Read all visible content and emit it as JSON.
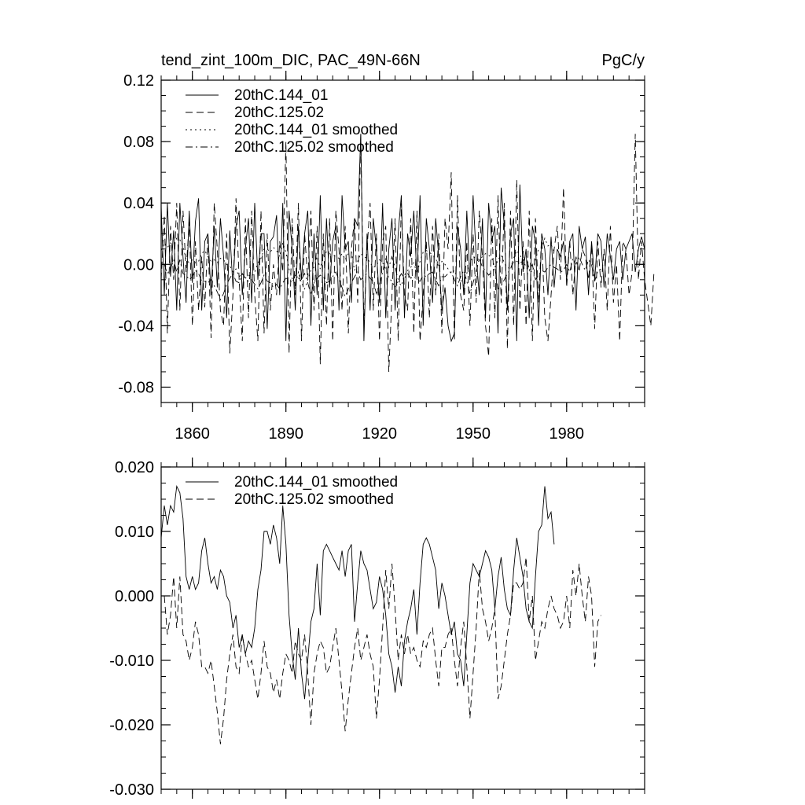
{
  "chart_data": [
    {
      "type": "line",
      "title": "tend_zint_100m_DIC, PAC_49N-66N",
      "units": "PgC/y",
      "xlim": [
        1850,
        2005
      ],
      "ylim": [
        -0.09,
        0.12
      ],
      "yticks": [
        -0.08,
        -0.04,
        0.0,
        0.04,
        0.08,
        0.12
      ],
      "ytick_labels": [
        "-0.08",
        "-0.04",
        "0.00",
        "0.04",
        "0.08",
        "0.12"
      ],
      "xticks": [
        1860,
        1890,
        1920,
        1950,
        1980
      ],
      "xtick_labels": [
        "1860",
        "1890",
        "1920",
        "1950",
        "1980"
      ],
      "legend": [
        {
          "label": "20thC.144_01",
          "dash": "solid"
        },
        {
          "label": "20thC.125.02",
          "dash": "dash"
        },
        {
          "label": "20thC.144_01 smoothed",
          "dash": "dot"
        },
        {
          "label": "20thC.125.02 smoothed",
          "dash": "dashdot"
        }
      ],
      "series": [
        {
          "name": "20thC.144_01",
          "x_start": 1850,
          "x_step": 1,
          "values": [
            0.038,
            -0.02,
            0.04,
            -0.008,
            0.022,
            -0.03,
            0.04,
            0.005,
            -0.025,
            0.035,
            -0.012,
            0.028,
            0.043,
            -0.03,
            0.015,
            0.02,
            -0.02,
            0.025,
            -0.015,
            0.03,
            0.005,
            -0.035,
            0.022,
            -0.015,
            0.025,
            0.035,
            -0.02,
            0.01,
            0.03,
            -0.025,
            0.04,
            -0.01,
            0.02,
            0.02,
            -0.042,
            0.015,
            0.018,
            0.032,
            -0.02,
            0.04,
            -0.05,
            0.035,
            0.01,
            -0.03,
            0.025,
            -0.01,
            0.02,
            0.035,
            -0.04,
            0.02,
            -0.02,
            0.045,
            -0.03,
            0.03,
            -0.015,
            0.015,
            0.025,
            -0.03,
            0.045,
            0.01,
            0.015,
            -0.025,
            0.03,
            0.025,
            0.085,
            -0.05,
            0.02,
            -0.03,
            0.03,
            0.01,
            -0.025,
            0.04,
            -0.035,
            0.01,
            0.03,
            -0.03,
            0.02,
            0.045,
            -0.035,
            0.02,
            0.005,
            0.035,
            -0.01,
            0.045,
            -0.04,
            0.03,
            0.01,
            -0.025,
            0.03,
            0.005,
            -0.03,
            -0.015,
            -0.04,
            -0.05,
            -0.045,
            0.025,
            0.01,
            -0.02,
            0.035,
            -0.01,
            0.045,
            0.005,
            -0.02,
            0.03,
            -0.035,
            0.04,
            0.015,
            0.025,
            -0.045,
            0.05,
            0.025,
            -0.03,
            0.02,
            0.03,
            -0.05,
            0.052,
            -0.005,
            0.01,
            -0.035,
            0.025,
            0.015,
            -0.04,
            0.02,
            0.01,
            -0.02,
            0.018,
            -0.015,
            0.01,
            0.005,
            0.015,
            -0.01,
            0.015,
            0.02,
            -0.03,
            0.025,
            0.01,
            0.018,
            -0.02,
            0.015,
            -0.01,
            0.02,
            0.015,
            -0.015,
            0.02,
            0.005,
            -0.01,
            0.01,
            0.015,
            -0.01,
            0.01,
            0.015,
            0.02,
            -0.005,
            0.01,
            0.018,
            0.01
          ]
        },
        {
          "name": "20thC.125.02",
          "x_start": 1850,
          "x_step": 1,
          "values": [
            -0.01,
            0.032,
            -0.045,
            0.025,
            -0.01,
            0.04,
            -0.03,
            0.035,
            -0.005,
            0.028,
            -0.04,
            0.015,
            -0.03,
            0.005,
            -0.028,
            0.02,
            -0.048,
            0.04,
            0.01,
            -0.03,
            -0.04,
            0.02,
            -0.058,
            -0.02,
            0.043,
            -0.01,
            -0.05,
            0.03,
            -0.035,
            0.035,
            -0.02,
            -0.05,
            0.035,
            -0.045,
            0.02,
            -0.03,
            0.0,
            -0.02,
            0.015,
            -0.005,
            0.08,
            -0.058,
            0.03,
            -0.02,
            0.04,
            -0.05,
            0.02,
            -0.01,
            0.035,
            -0.03,
            0.025,
            -0.065,
            0.02,
            -0.04,
            0.03,
            -0.05,
            0.035,
            0.01,
            -0.03,
            0.025,
            -0.045,
            0.01,
            0.03,
            -0.025,
            0.085,
            -0.04,
            0.01,
            0.04,
            -0.03,
            0.02,
            -0.05,
            0.015,
            0.025,
            -0.07,
            -0.02,
            0.03,
            -0.05,
            0.04,
            -0.02,
            -0.03,
            0.03,
            -0.045,
            0.035,
            -0.05,
            -0.02,
            0.015,
            -0.035,
            0.025,
            -0.02,
            0.02,
            -0.045,
            0.03,
            0.01,
            0.06,
            -0.05,
            0.045,
            -0.02,
            -0.03,
            0.015,
            -0.04,
            0.02,
            -0.025,
            0.035,
            0.005,
            -0.04,
            -0.06,
            0.03,
            -0.035,
            0.045,
            -0.025,
            0.04,
            -0.055,
            0.035,
            -0.04,
            0.055,
            -0.03,
            0.015,
            -0.04,
            0.035,
            -0.05,
            0.03,
            -0.025,
            0.02,
            -0.035,
            -0.05,
            -0.02,
            0.01,
            0.025,
            -0.01,
            0.05,
            -0.015,
            0.015,
            -0.02,
            0.005,
            -0.005,
            0.01,
            0.005,
            -0.01,
            0.012,
            -0.042,
            0.015,
            -0.015,
            0.01,
            -0.03,
            0.025,
            -0.025,
            0.0,
            -0.05,
            0.015,
            0.01,
            -0.02,
            -0.005,
            0.085,
            -0.01,
            0.015,
            -0.01,
            -0.025,
            -0.04,
            -0.005
          ]
        },
        {
          "name": "20thC.144_01 smoothed",
          "x_start": 1850,
          "x_step": 1,
          "values": [
            0.009,
            0.014,
            0.011,
            0.014,
            0.013,
            0.017,
            0.016,
            0.012,
            0.003,
            0.001,
            0.003,
            0.001,
            0.002,
            0.007,
            0.009,
            0.005,
            0.002,
            0.003,
            0.001,
            0.004,
            0.003,
            0.0,
            -0.001,
            -0.005,
            -0.003,
            -0.008,
            -0.006,
            -0.009,
            -0.007,
            -0.008,
            -0.005,
            0.001,
            0.004,
            0.01,
            0.01,
            0.008,
            0.011,
            0.009,
            0.005,
            0.014,
            0.008,
            -0.003,
            -0.009,
            -0.013,
            -0.005,
            -0.012,
            -0.016,
            -0.01,
            -0.004,
            -0.002,
            0.005,
            -0.003,
            0.007,
            0.008,
            0.007,
            0.006,
            0.005,
            0.004,
            0.007,
            0.003,
            0.007,
            0.008,
            -0.004,
            0.002,
            0.007,
            0.005,
            0.004,
            0.001,
            -0.002,
            -0.001,
            0.003,
            0.001,
            -0.003,
            -0.009,
            -0.011,
            -0.015,
            -0.011,
            -0.014,
            -0.007,
            -0.004,
            -0.002,
            0.001,
            -0.006,
            0.002,
            0.008,
            0.009,
            0.008,
            0.006,
            0.004,
            -0.002,
            0.002,
            0.0,
            -0.003,
            -0.006,
            -0.004,
            -0.009,
            -0.01,
            -0.014,
            -0.006,
            0.002,
            0.005,
            0.004,
            0.003,
            0.005,
            0.007,
            0.006,
            0.004,
            -0.002,
            0.003,
            0.006,
            0.001,
            -0.002,
            -0.003,
            0.004,
            0.009,
            0.006,
            0.003,
            -0.002,
            -0.004,
            -0.005,
            0.003,
            0.01,
            0.011,
            0.017,
            0.012,
            0.013,
            0.008
          ]
        },
        {
          "name": "20thC.125.02 smoothed",
          "x_start": 1851,
          "x_step": 1,
          "values": [
            0.0,
            -0.006,
            -0.003,
            0.003,
            -0.005,
            0.003,
            -0.006,
            -0.007,
            -0.01,
            -0.008,
            -0.004,
            -0.006,
            -0.011,
            -0.011,
            -0.012,
            -0.01,
            -0.014,
            -0.018,
            -0.023,
            -0.019,
            -0.013,
            -0.009,
            -0.006,
            -0.011,
            -0.012,
            -0.006,
            -0.009,
            -0.011,
            -0.01,
            -0.013,
            -0.016,
            -0.012,
            -0.007,
            -0.011,
            -0.012,
            -0.015,
            -0.013,
            -0.016,
            -0.012,
            -0.009,
            -0.01,
            -0.012,
            -0.007,
            -0.009,
            -0.01,
            -0.006,
            -0.012,
            -0.02,
            -0.012,
            -0.009,
            -0.007,
            -0.008,
            -0.012,
            -0.011,
            -0.008,
            -0.005,
            -0.01,
            -0.015,
            -0.021,
            -0.016,
            -0.012,
            -0.008,
            -0.005,
            -0.01,
            -0.008,
            -0.006,
            -0.009,
            -0.011,
            -0.019,
            -0.013,
            -0.005,
            0.004,
            -0.002,
            0.005,
            -0.002,
            -0.01,
            -0.006,
            -0.009,
            -0.006,
            -0.009,
            -0.008,
            -0.01,
            -0.011,
            -0.007,
            -0.008,
            -0.006,
            -0.005,
            -0.01,
            -0.014,
            -0.008,
            -0.008,
            -0.006,
            -0.005,
            -0.01,
            -0.014,
            -0.008,
            -0.004,
            -0.011,
            -0.019,
            -0.012,
            -0.005,
            0.004,
            -0.002,
            -0.004,
            -0.007,
            -0.005,
            -0.002,
            -0.016,
            -0.014,
            -0.01,
            -0.006,
            -0.003,
            0.002,
            0.002,
            0.001,
            0.002,
            0.006,
            -0.004,
            0.0,
            -0.01,
            -0.007,
            -0.004,
            -0.005,
            -0.002,
            0.0,
            -0.002,
            -0.003,
            -0.005,
            -0.004,
            0.0,
            -0.005,
            0.004,
            0.0,
            0.005,
            0.0,
            -0.004,
            0.003,
            0.0,
            -0.011,
            -0.004,
            -0.003
          ]
        }
      ]
    },
    {
      "type": "line",
      "title": "",
      "units": "",
      "xlim": [
        1850,
        2005
      ],
      "ylim": [
        -0.03,
        0.02
      ],
      "yticks": [
        -0.03,
        -0.02,
        -0.01,
        0.0,
        0.01,
        0.02
      ],
      "ytick_labels": [
        "-0.030",
        "-0.020",
        "-0.010",
        "0.000",
        "0.010",
        "0.020"
      ],
      "xticks": [
        1860,
        1890,
        1920,
        1950,
        1980
      ],
      "xtick_labels": [],
      "legend": [
        {
          "label": "20thC.144_01 smoothed",
          "dash": "solid"
        },
        {
          "label": "20thC.125.02 smoothed",
          "dash": "dash"
        }
      ],
      "series_refs": [
        "20thC.144_01 smoothed",
        "20thC.125.02 smoothed"
      ]
    }
  ]
}
